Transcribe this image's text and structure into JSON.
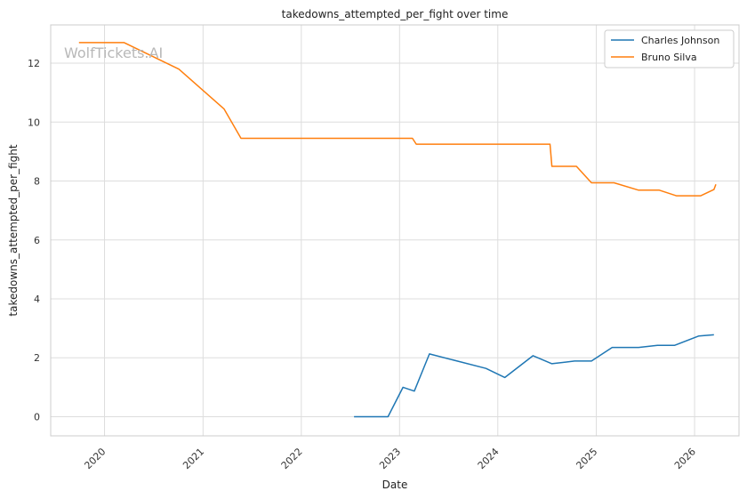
{
  "chart_data": {
    "type": "line",
    "title": "takedowns_attempted_per_fight over time",
    "xlabel": "Date",
    "ylabel": "takedowns_attempted_per_fight",
    "watermark": "WolfTickets.AI",
    "xlim": [
      "2019-06-15",
      "2026-06-15"
    ],
    "ylim": [
      -0.65,
      13.3
    ],
    "x_ticks": [
      "2020",
      "2021",
      "2022",
      "2023",
      "2024",
      "2025",
      "2026"
    ],
    "y_ticks": [
      "0",
      "2",
      "4",
      "6",
      "8",
      "10",
      "12"
    ],
    "grid": true,
    "legend_position": "top-right",
    "series": [
      {
        "name": "Charles Johnson",
        "color": "#1f77b4",
        "points": [
          {
            "x": "2022-07-16",
            "y": 0.0
          },
          {
            "x": "2022-11-19",
            "y": 0.0
          },
          {
            "x": "2023-01-14",
            "y": 1.0
          },
          {
            "x": "2023-02-25",
            "y": 0.87
          },
          {
            "x": "2023-04-22",
            "y": 2.13
          },
          {
            "x": "2023-11-18",
            "y": 1.64
          },
          {
            "x": "2024-01-27",
            "y": 1.33
          },
          {
            "x": "2024-05-11",
            "y": 2.07
          },
          {
            "x": "2024-07-20",
            "y": 1.8
          },
          {
            "x": "2024-10-12",
            "y": 1.89
          },
          {
            "x": "2024-12-14",
            "y": 1.89
          },
          {
            "x": "2025-03-01",
            "y": 2.35
          },
          {
            "x": "2025-06-07",
            "y": 2.35
          },
          {
            "x": "2025-08-16",
            "y": 2.42
          },
          {
            "x": "2025-10-18",
            "y": 2.42
          },
          {
            "x": "2026-01-17",
            "y": 2.74
          },
          {
            "x": "2026-03-14",
            "y": 2.78
          }
        ]
      },
      {
        "name": "Bruno Silva",
        "color": "#ff7f0e",
        "points": [
          {
            "x": "2019-09-28",
            "y": 12.7
          },
          {
            "x": "2020-03-14",
            "y": 12.7
          },
          {
            "x": "2020-10-03",
            "y": 11.8
          },
          {
            "x": "2021-03-20",
            "y": 10.45
          },
          {
            "x": "2021-05-22",
            "y": 9.45
          },
          {
            "x": "2023-02-18",
            "y": 9.45
          },
          {
            "x": "2023-03-04",
            "y": 9.25
          },
          {
            "x": "2024-07-13",
            "y": 9.25
          },
          {
            "x": "2024-07-20",
            "y": 8.5
          },
          {
            "x": "2024-10-19",
            "y": 8.5
          },
          {
            "x": "2024-12-14",
            "y": 7.94
          },
          {
            "x": "2025-03-08",
            "y": 7.94
          },
          {
            "x": "2025-06-07",
            "y": 7.69
          },
          {
            "x": "2025-08-23",
            "y": 7.69
          },
          {
            "x": "2025-10-25",
            "y": 7.5
          },
          {
            "x": "2026-01-24",
            "y": 7.5
          },
          {
            "x": "2026-03-14",
            "y": 7.71
          },
          {
            "x": "2026-03-21",
            "y": 7.89
          }
        ]
      }
    ]
  }
}
